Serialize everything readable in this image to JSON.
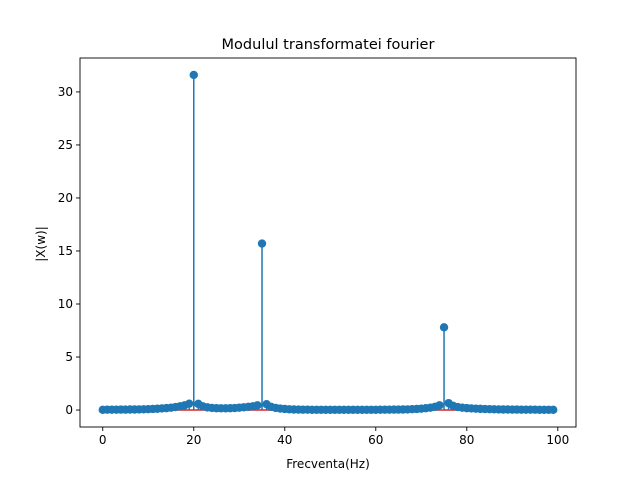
{
  "chart_data": {
    "type": "stem",
    "title": "Modulul transformatei fourier",
    "xlabel": "Frecventa(Hz)",
    "ylabel": "|X(w)|",
    "xlim": [
      -5,
      104
    ],
    "ylim": [
      -1.6,
      33.2
    ],
    "xticks": [
      0,
      20,
      40,
      60,
      80,
      100
    ],
    "yticks": [
      0,
      5,
      10,
      15,
      20,
      25,
      30
    ],
    "grid": false,
    "colors": {
      "stem": "#1f77b4",
      "baseline": "#d62728"
    },
    "x": [
      0,
      1,
      2,
      3,
      4,
      5,
      6,
      7,
      8,
      9,
      10,
      11,
      12,
      13,
      14,
      15,
      16,
      17,
      18,
      19,
      20,
      21,
      22,
      23,
      24,
      25,
      26,
      27,
      28,
      29,
      30,
      31,
      32,
      33,
      34,
      35,
      36,
      37,
      38,
      39,
      40,
      41,
      42,
      43,
      44,
      45,
      46,
      47,
      48,
      49,
      50,
      51,
      52,
      53,
      54,
      55,
      56,
      57,
      58,
      59,
      60,
      61,
      62,
      63,
      64,
      65,
      66,
      67,
      68,
      69,
      70,
      71,
      72,
      73,
      74,
      75,
      76,
      77,
      78,
      79,
      80,
      81,
      82,
      83,
      84,
      85,
      86,
      87,
      88,
      89,
      90,
      91,
      92,
      93,
      94,
      95,
      96,
      97,
      98,
      99
    ],
    "values": [
      0.02,
      0.03,
      0.03,
      0.03,
      0.04,
      0.04,
      0.05,
      0.05,
      0.06,
      0.07,
      0.08,
      0.1,
      0.12,
      0.15,
      0.18,
      0.22,
      0.28,
      0.35,
      0.45,
      0.6,
      31.6,
      0.58,
      0.35,
      0.25,
      0.2,
      0.17,
      0.16,
      0.16,
      0.17,
      0.19,
      0.22,
      0.26,
      0.3,
      0.35,
      0.45,
      15.7,
      0.55,
      0.3,
      0.2,
      0.14,
      0.1,
      0.07,
      0.05,
      0.04,
      0.03,
      0.03,
      0.02,
      0.02,
      0.02,
      0.02,
      0.02,
      0.02,
      0.02,
      0.02,
      0.02,
      0.02,
      0.02,
      0.02,
      0.02,
      0.02,
      0.02,
      0.03,
      0.03,
      0.03,
      0.04,
      0.04,
      0.05,
      0.06,
      0.08,
      0.1,
      0.13,
      0.17,
      0.22,
      0.3,
      0.45,
      7.8,
      0.65,
      0.4,
      0.28,
      0.22,
      0.18,
      0.15,
      0.13,
      0.11,
      0.09,
      0.08,
      0.07,
      0.06,
      0.05,
      0.05,
      0.04,
      0.04,
      0.03,
      0.03,
      0.03,
      0.03,
      0.02,
      0.02,
      0.02,
      0.02
    ]
  }
}
